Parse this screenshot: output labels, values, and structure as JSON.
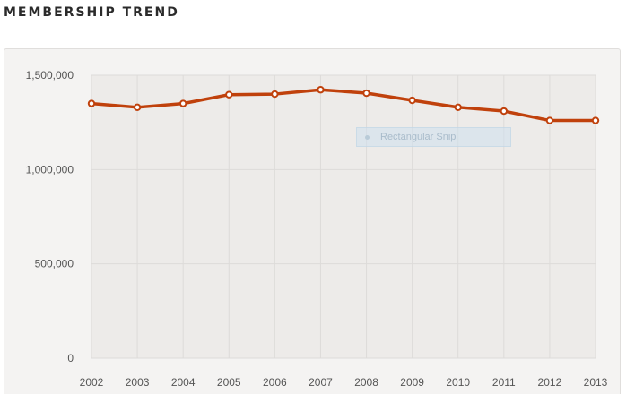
{
  "title": "MEMBERSHIP TREND",
  "overlay": {
    "label": "Rectangular Snip",
    "icon": "snip-icon"
  },
  "colors": {
    "line": "#c0410c",
    "point_fill": "#ffffff",
    "plot_background": "#edebe9",
    "grid": "#dddbd9",
    "panel_background": "#f4f3f2"
  },
  "chart_data": {
    "type": "line",
    "title": "MEMBERSHIP TREND",
    "xlabel": "",
    "ylabel": "",
    "x": [
      "2002",
      "2003",
      "2004",
      "2005",
      "2006",
      "2007",
      "2008",
      "2009",
      "2010",
      "2011",
      "2012",
      "2013"
    ],
    "series": [
      {
        "values": [
          1350000,
          1330000,
          1350000,
          1397000,
          1400000,
          1423000,
          1405000,
          1367000,
          1330000,
          1310000,
          1260000,
          1260000
        ]
      }
    ],
    "ylim": [
      0,
      1500000
    ],
    "yticks": [
      0,
      500000,
      1000000,
      1500000
    ],
    "ytick_labels": [
      "0",
      "500,000",
      "1,000,000",
      "1,500,000"
    ],
    "grid": true,
    "legend": "none"
  }
}
